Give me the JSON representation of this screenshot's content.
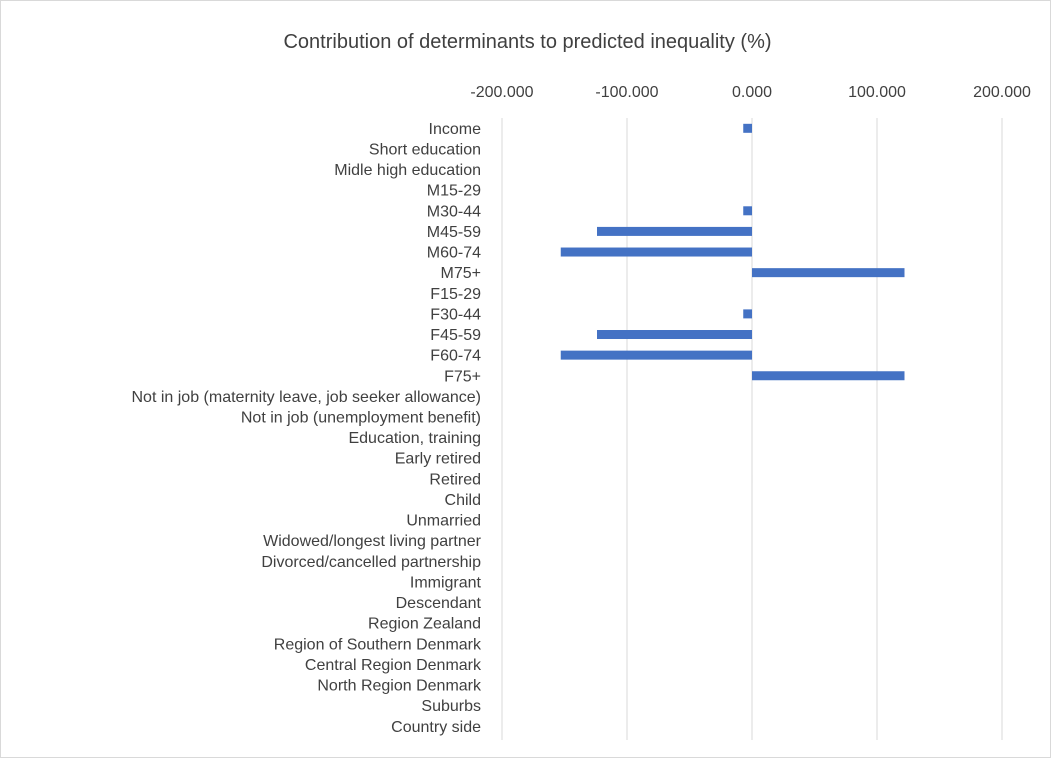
{
  "chart_data": {
    "type": "bar",
    "orientation": "horizontal",
    "title": "Contribution of determinants to predicted inequality (%)",
    "xlabel": "",
    "ylabel": "",
    "xlim": [
      -200,
      200
    ],
    "x_tick_values": [
      -200,
      -100,
      0,
      100,
      200
    ],
    "x_tick_labels": [
      "-200.000",
      "-100.000",
      "0.000",
      "100.000",
      "200.000"
    ],
    "x_axis_position": "top",
    "grid": "vertical",
    "legend": "none",
    "bar_color": "#4472c4",
    "grid_color": "#d9d9d9",
    "categories": [
      "Income",
      "Short education",
      "Midle high education",
      "M15-29",
      "M30-44",
      "M45-59",
      "M60-74",
      "M75+",
      "F15-29",
      "F30-44",
      "F45-59",
      "F60-74",
      "F75+",
      "Not in job (maternity leave, job seeker allowance)",
      "Not in job (unemployment benefit)",
      "Education, training",
      "Early retired",
      "Retired",
      "Child",
      "Unmarried",
      "Widowed/longest living partner",
      "Divorced/cancelled partnership",
      "Immigrant",
      "Descendant",
      "Region Zealand",
      "Region of Southern Denmark",
      "Central Region Denmark",
      "North Region Denmark",
      "Suburbs",
      "Country side"
    ],
    "values": [
      -7,
      0,
      0,
      0,
      -7,
      -124,
      -153,
      122,
      0,
      -7,
      -124,
      -153,
      122,
      0,
      0,
      0,
      0,
      0.5,
      0,
      0,
      0,
      0,
      0,
      0,
      0,
      0,
      0,
      0,
      0,
      0
    ]
  }
}
